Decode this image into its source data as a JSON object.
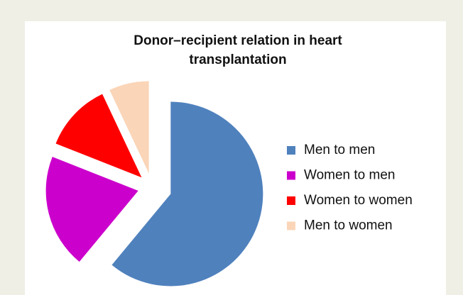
{
  "chart_data": {
    "type": "pie",
    "title": "Donor–recipient relation in heart transplantation",
    "categories": [
      "Men to men",
      "Women to men",
      "Women to women",
      "Men to women"
    ],
    "values": [
      61,
      20,
      12,
      7
    ],
    "colors": [
      "#4f81bd",
      "#cc00cc",
      "#ff0000",
      "#fad5b8"
    ],
    "legend": "right"
  }
}
